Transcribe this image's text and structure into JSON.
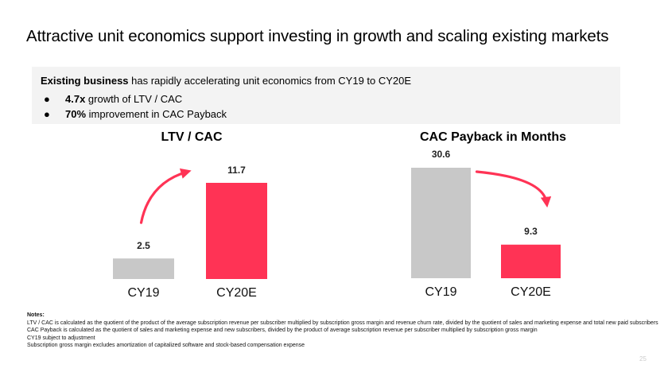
{
  "title": "Attractive unit economics support investing in growth and scaling existing markets",
  "summary": {
    "lead_bold": "Existing business",
    "lead_text": " has rapidly accelerating unit economics from CY19 to CY20E",
    "bullet_char": "●",
    "bullets": [
      {
        "bold": "4.7x",
        "text": " growth of LTV / CAC"
      },
      {
        "bold": "70%",
        "text": " improvement in CAC Payback"
      }
    ]
  },
  "colors": {
    "gray": "#c8c8c8",
    "accent": "#ff3355"
  },
  "chart_data": [
    {
      "type": "bar",
      "title": "LTV / CAC",
      "categories": [
        "CY19",
        "CY20E"
      ],
      "values": [
        2.5,
        11.7
      ],
      "value_labels": [
        "2.5",
        "11.7"
      ],
      "colors": [
        "#c8c8c8",
        "#ff3355"
      ],
      "ylim": [
        0,
        11.7
      ],
      "trend": "up"
    },
    {
      "type": "bar",
      "title": "CAC Payback in Months",
      "categories": [
        "CY19",
        "CY20E"
      ],
      "values": [
        30.6,
        9.3
      ],
      "value_labels": [
        "30.6",
        "9.3"
      ],
      "colors": [
        "#c8c8c8",
        "#ff3355"
      ],
      "ylim": [
        0,
        30.6
      ],
      "trend": "down"
    }
  ],
  "notes": {
    "header": "Notes:",
    "lines": [
      "LTV / CAC is calculated as the quotient of the product of the average subscription revenue per subscriber multiplied by subscription gross margin and revenue churn rate, divided by the quotient of sales and marketing expense and total new paid  subscribers",
      "CAC Payback is calculated as the quotient of sales and marketing expense and new subscribers, divided by the product of average subscription revenue per subscriber multiplied by subscription gross margin",
      "CY19 subject to adjustment",
      "Subscription gross margin excludes amortization of capitalized software and stock-based compensation expense"
    ]
  },
  "page_number": "25"
}
